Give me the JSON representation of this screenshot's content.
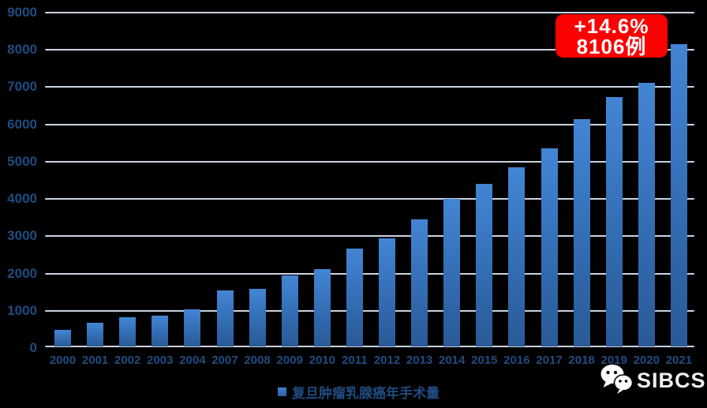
{
  "chart_data": {
    "type": "bar",
    "title": "",
    "categories": [
      "2000",
      "2001",
      "2002",
      "2003",
      "2004",
      "2007",
      "2008",
      "2009",
      "2010",
      "2011",
      "2012",
      "2013",
      "2014",
      "2015",
      "2016",
      "2017",
      "2018",
      "2019",
      "2020",
      "2021"
    ],
    "values": [
      440,
      630,
      780,
      830,
      1000,
      1500,
      1550,
      1900,
      2080,
      2630,
      2900,
      3400,
      3950,
      4360,
      4800,
      5320,
      6090,
      6700,
      7072,
      8106
    ],
    "ylim": [
      0,
      9000
    ],
    "ytick_interval": 1000,
    "grid": true,
    "legend_label": "复旦肿瘤乳腺癌年手术量",
    "legend_position": "bottom",
    "annotation": {
      "line1": "+14.6%",
      "line2": "8106例",
      "applies_to": "2021"
    }
  },
  "watermark": {
    "icon": "wechat-icon",
    "text": "SIBCS"
  },
  "colors": {
    "background": "#000000",
    "bar_top": "#4385d4",
    "bar_bottom": "#2a5a97",
    "axis_label": "#1f4c80",
    "gridline": "#d9e3f2",
    "badge_background": "#fb0100",
    "badge_text": "#ffffff",
    "watermark_text": "#efefef"
  }
}
